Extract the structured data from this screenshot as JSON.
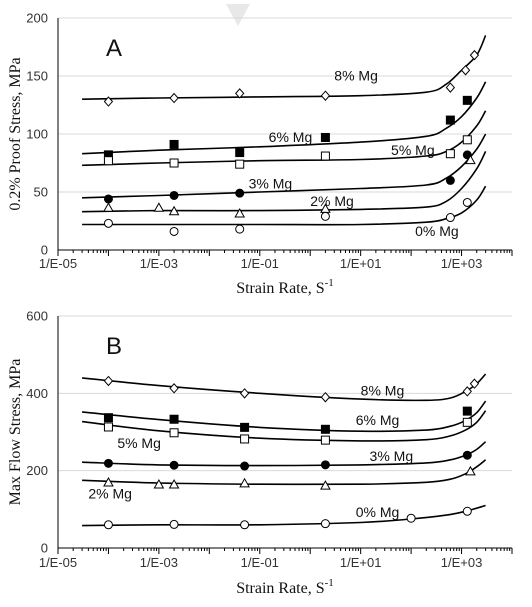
{
  "chart_data": [
    {
      "type": "scatter",
      "panel_label": "A",
      "xlabel": "Strain Rate, S",
      "xlabel_sup": "-1",
      "ylabel": "0.2% Proof Stress, MPa",
      "x_scale": "log",
      "xlim": [
        1e-05,
        10000
      ],
      "ylim": [
        0,
        200
      ],
      "y_ticks": [
        0,
        50,
        100,
        150,
        200
      ],
      "x_tick_values": [
        1e-05,
        0.001,
        0.1,
        10,
        1000
      ],
      "x_tick_labels": [
        "1/E-05",
        "1/E-03",
        "1/E-01",
        "1/E+01",
        "1/E+03"
      ],
      "grid": "horizontal",
      "legend": "none",
      "series": [
        {
          "name": "8% Mg",
          "marker": "diamond-open",
          "points": [
            [
              0.0001,
              128
            ],
            [
              0.002,
              131
            ],
            [
              0.04,
              135
            ],
            [
              2,
              133
            ],
            [
              600,
              140
            ],
            [
              1200,
              155
            ],
            [
              1800,
              168
            ]
          ],
          "curve": [
            [
              3e-05,
              130
            ],
            [
              0.001,
              131
            ],
            [
              0.1,
              132
            ],
            [
              10,
              133
            ],
            [
              200,
              136
            ],
            [
              500,
              143
            ],
            [
              1000,
              155
            ],
            [
              2000,
              168
            ],
            [
              3000,
              185
            ]
          ],
          "label_at": [
            3,
            146
          ]
        },
        {
          "name": "6% Mg",
          "marker": "square-filled",
          "points": [
            [
              0.0001,
              82
            ],
            [
              0.002,
              91
            ],
            [
              0.04,
              84
            ],
            [
              2,
              97
            ],
            [
              600,
              112
            ],
            [
              1300,
              129
            ]
          ],
          "curve": [
            [
              3e-05,
              83
            ],
            [
              0.001,
              86
            ],
            [
              0.1,
              89
            ],
            [
              10,
              93
            ],
            [
              200,
              98
            ],
            [
              500,
              105
            ],
            [
              1000,
              115
            ],
            [
              2000,
              131
            ],
            [
              3000,
              145
            ]
          ],
          "label_at": [
            0.15,
            93
          ]
        },
        {
          "name": "5% Mg",
          "marker": "square-open",
          "points": [
            [
              0.0001,
              77
            ],
            [
              0.002,
              75
            ],
            [
              0.04,
              74
            ],
            [
              2,
              81
            ],
            [
              600,
              83
            ],
            [
              1300,
              95
            ]
          ],
          "curve": [
            [
              3e-05,
              73
            ],
            [
              0.001,
              75
            ],
            [
              0.1,
              77
            ],
            [
              10,
              78
            ],
            [
              200,
              81
            ],
            [
              500,
              85
            ],
            [
              1000,
              93
            ],
            [
              2000,
              107
            ],
            [
              3000,
              120
            ]
          ],
          "label_at": [
            40,
            82
          ]
        },
        {
          "name": "3% Mg",
          "marker": "circle-filled",
          "points": [
            [
              0.0001,
              44
            ],
            [
              0.002,
              47
            ],
            [
              0.04,
              49
            ],
            [
              600,
              60
            ],
            [
              1300,
              82
            ]
          ],
          "curve": [
            [
              3e-05,
              45
            ],
            [
              0.001,
              47
            ],
            [
              0.1,
              50
            ],
            [
              10,
              53
            ],
            [
              200,
              56
            ],
            [
              500,
              62
            ],
            [
              1000,
              72
            ],
            [
              2000,
              87
            ],
            [
              3000,
              100
            ]
          ],
          "label_at": [
            0.06,
            53
          ]
        },
        {
          "name": "2% Mg",
          "marker": "triangle-open",
          "points": [
            [
              0.0001,
              36
            ],
            [
              0.001,
              36
            ],
            [
              0.002,
              33
            ],
            [
              0.04,
              31
            ],
            [
              2,
              35
            ],
            [
              1500,
              77
            ]
          ],
          "curve": [
            [
              3e-05,
              33
            ],
            [
              0.001,
              34
            ],
            [
              0.1,
              34
            ],
            [
              10,
              35
            ],
            [
              200,
              37
            ],
            [
              500,
              42
            ],
            [
              1000,
              53
            ],
            [
              2000,
              70
            ],
            [
              3000,
              85
            ]
          ],
          "label_at": [
            1,
            38
          ]
        },
        {
          "name": "0% Mg",
          "marker": "circle-open",
          "points": [
            [
              0.0001,
              23
            ],
            [
              0.002,
              16
            ],
            [
              0.04,
              18
            ],
            [
              2,
              29
            ],
            [
              600,
              28
            ],
            [
              1300,
              41
            ]
          ],
          "curve": [
            [
              3e-05,
              22
            ],
            [
              0.001,
              22
            ],
            [
              0.1,
              22
            ],
            [
              10,
              22
            ],
            [
              200,
              24
            ],
            [
              500,
              27
            ],
            [
              1000,
              32
            ],
            [
              2000,
              43
            ],
            [
              3000,
              55
            ]
          ],
          "label_at": [
            120,
            12
          ]
        }
      ]
    },
    {
      "type": "scatter",
      "panel_label": "B",
      "xlabel": "Strain Rate, S",
      "xlabel_sup": "-1",
      "ylabel": "Max Flow Stress, MPa",
      "x_scale": "log",
      "xlim": [
        1e-05,
        10000
      ],
      "ylim": [
        0,
        600
      ],
      "y_ticks": [
        0,
        200,
        400,
        600
      ],
      "x_tick_values": [
        1e-05,
        0.001,
        0.1,
        10,
        1000
      ],
      "x_tick_labels": [
        "1/E-05",
        "1/E-03",
        "1/E-01",
        "1/E+01",
        "1/E+03"
      ],
      "grid": "horizontal",
      "legend": "none",
      "series": [
        {
          "name": "8% Mg",
          "marker": "diamond-open",
          "points": [
            [
              0.0001,
              432
            ],
            [
              0.002,
              413
            ],
            [
              0.05,
              400
            ],
            [
              2,
              390
            ],
            [
              1300,
              405
            ],
            [
              1800,
              425
            ]
          ],
          "curve": [
            [
              3e-05,
              440
            ],
            [
              0.001,
              420
            ],
            [
              0.1,
              400
            ],
            [
              10,
              385
            ],
            [
              200,
              382
            ],
            [
              600,
              388
            ],
            [
              1200,
              405
            ],
            [
              2000,
              425
            ],
            [
              3000,
              450
            ]
          ],
          "label_at": [
            10,
            395
          ]
        },
        {
          "name": "6% Mg",
          "marker": "square-filled",
          "points": [
            [
              0.0001,
              337
            ],
            [
              0.002,
              333
            ],
            [
              0.05,
              312
            ],
            [
              2,
              307
            ],
            [
              1300,
              354
            ]
          ],
          "curve": [
            [
              3e-05,
              352
            ],
            [
              0.001,
              332
            ],
            [
              0.1,
              312
            ],
            [
              10,
              302
            ],
            [
              200,
              305
            ],
            [
              600,
              315
            ],
            [
              1200,
              330
            ],
            [
              2000,
              350
            ],
            [
              3000,
              380
            ]
          ],
          "label_at": [
            8,
            318
          ]
        },
        {
          "name": "5% Mg",
          "marker": "square-open",
          "points": [
            [
              0.0001,
              313
            ],
            [
              0.002,
              298
            ],
            [
              0.05,
              282
            ],
            [
              2,
              279
            ],
            [
              1300,
              325
            ]
          ],
          "curve": [
            [
              3e-05,
              327
            ],
            [
              0.001,
              303
            ],
            [
              0.1,
              284
            ],
            [
              10,
              277
            ],
            [
              200,
              280
            ],
            [
              600,
              290
            ],
            [
              1200,
              305
            ],
            [
              2000,
              325
            ],
            [
              3000,
              355
            ]
          ],
          "label_at": [
            0.00015,
            258
          ]
        },
        {
          "name": "3% Mg",
          "marker": "circle-filled",
          "points": [
            [
              0.0001,
              219
            ],
            [
              0.002,
              214
            ],
            [
              0.05,
              212
            ],
            [
              2,
              215
            ],
            [
              1300,
              240
            ]
          ],
          "curve": [
            [
              3e-05,
              222
            ],
            [
              0.001,
              215
            ],
            [
              0.1,
              213
            ],
            [
              10,
              215
            ],
            [
              200,
              220
            ],
            [
              600,
              228
            ],
            [
              1200,
              240
            ],
            [
              2000,
              255
            ],
            [
              3000,
              275
            ]
          ],
          "label_at": [
            15,
            225
          ]
        },
        {
          "name": "2% Mg",
          "marker": "triangle-open",
          "points": [
            [
              0.0001,
              168
            ],
            [
              0.001,
              163
            ],
            [
              0.002,
              163
            ],
            [
              0.05,
              166
            ],
            [
              2,
              160
            ],
            [
              1500,
              197
            ]
          ],
          "curve": [
            [
              3e-05,
              175
            ],
            [
              0.001,
              168
            ],
            [
              0.1,
              165
            ],
            [
              10,
              165
            ],
            [
              200,
              170
            ],
            [
              600,
              178
            ],
            [
              1200,
              192
            ],
            [
              2000,
              210
            ],
            [
              3000,
              228
            ]
          ],
          "label_at": [
            4e-05,
            128
          ]
        },
        {
          "name": "0% Mg",
          "marker": "circle-open",
          "points": [
            [
              0.0001,
              60
            ],
            [
              0.002,
              61
            ],
            [
              0.05,
              60
            ],
            [
              2,
              63
            ],
            [
              100,
              77
            ],
            [
              1300,
              95
            ]
          ],
          "curve": [
            [
              3e-05,
              58
            ],
            [
              0.001,
              60
            ],
            [
              0.1,
              60
            ],
            [
              10,
              66
            ],
            [
              100,
              75
            ],
            [
              500,
              85
            ],
            [
              1200,
              95
            ],
            [
              2000,
              103
            ],
            [
              3000,
              110
            ]
          ],
          "label_at": [
            8,
            80
          ]
        }
      ]
    }
  ]
}
